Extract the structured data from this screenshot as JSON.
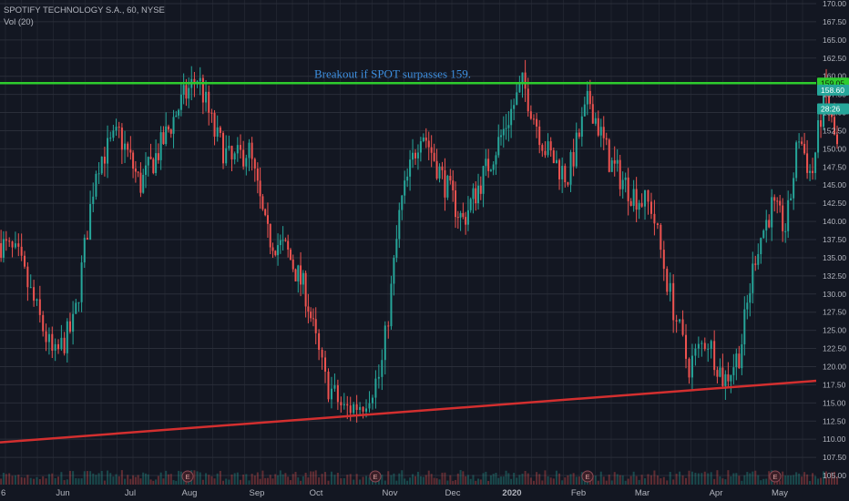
{
  "legend": {
    "symbol_line": "SPOTIFY TECHNOLOGY S.A., 60, NYSE",
    "volume_line": "Vol (20)"
  },
  "annotation": "Breakout if SPOT surpasses 159.",
  "badges": {
    "breakout_level": "159.05",
    "last_price": "158.60",
    "countdown": "28:26"
  },
  "earnings_marker": "E",
  "colors": {
    "background": "#131722",
    "grid": "#2a2e39",
    "up_candle": "#26a69a",
    "down_candle": "#ef5350",
    "resistance_line": "#2ecc2e",
    "support_line": "#d32f2f",
    "annotation": "#3d8fe0"
  },
  "chart_data": {
    "type": "candlestick",
    "interval": "60",
    "y_axis_side": "right",
    "ylim": [
      104,
      170
    ],
    "y_ticks": [
      "105.00",
      "107.50",
      "110.00",
      "112.50",
      "115.00",
      "117.50",
      "120.00",
      "122.50",
      "125.00",
      "127.50",
      "130.00",
      "132.50",
      "135.00",
      "137.50",
      "140.00",
      "142.50",
      "145.00",
      "147.50",
      "150.00",
      "152.50",
      "155.00",
      "157.50",
      "160.00",
      "162.50",
      "165.00",
      "167.50",
      "170.00"
    ],
    "x_ticks": [
      {
        "label": "6",
        "bold": false
      },
      {
        "label": "Jun",
        "bold": false
      },
      {
        "label": "Jul",
        "bold": false
      },
      {
        "label": "Aug",
        "bold": false
      },
      {
        "label": "Sep",
        "bold": false
      },
      {
        "label": "Oct",
        "bold": false
      },
      {
        "label": "Nov",
        "bold": false
      },
      {
        "label": "Dec",
        "bold": false
      },
      {
        "label": "2020",
        "bold": true
      },
      {
        "label": "Feb",
        "bold": false
      },
      {
        "label": "Mar",
        "bold": false
      },
      {
        "label": "Apr",
        "bold": false
      },
      {
        "label": "May",
        "bold": false
      }
    ],
    "price_path": [
      [
        "May 2019",
        137
      ],
      [
        "May 2019",
        135
      ],
      [
        "May 2019",
        128
      ],
      [
        "May 2019",
        121
      ],
      [
        "Jun 2019",
        126
      ],
      [
        "Jun 2019",
        148
      ],
      [
        "Jun 2019",
        152
      ],
      [
        "Jul 2019",
        145
      ],
      [
        "Jul 2019",
        150
      ],
      [
        "Jul 2019",
        156
      ],
      [
        "Aug 2019",
        160
      ],
      [
        "Aug 2019",
        152
      ],
      [
        "Aug 2019",
        148
      ],
      [
        "Aug 2019",
        150
      ],
      [
        "Sep 2019",
        138
      ],
      [
        "Sep 2019",
        136
      ],
      [
        "Sep 2019",
        130
      ],
      [
        "Oct 2019",
        118
      ],
      [
        "Oct 2019",
        114
      ],
      [
        "Oct 2019",
        115
      ],
      [
        "Oct 2019",
        119
      ],
      [
        "Nov 2019",
        142
      ],
      [
        "Nov 2019",
        153
      ],
      [
        "Nov 2019",
        146
      ],
      [
        "Dec 2019",
        140
      ],
      [
        "Dec 2019",
        146
      ],
      [
        "Dec 2019",
        152
      ],
      [
        "Jan 2020",
        159
      ],
      [
        "Jan 2020",
        150
      ],
      [
        "Jan 2020",
        146
      ],
      [
        "Feb 2020",
        157
      ],
      [
        "Feb 2020",
        148
      ],
      [
        "Feb 2020",
        144
      ],
      [
        "Mar 2020",
        142
      ],
      [
        "Mar 2020",
        130
      ],
      [
        "Mar 2020",
        120
      ],
      [
        "Mar 2020",
        124
      ],
      [
        "Apr 2020",
        118
      ],
      [
        "Apr 2020",
        122
      ],
      [
        "Apr 2020",
        136
      ],
      [
        "Apr 2020",
        142
      ],
      [
        "May 2020",
        139
      ],
      [
        "May 2020",
        152
      ],
      [
        "May 2020",
        146
      ],
      [
        "May 2020",
        158
      ],
      [
        "May 2020",
        150
      ]
    ],
    "resistance": {
      "price": 159.05
    },
    "support_trendline": {
      "start": [
        "May 2019",
        109.5
      ],
      "end": [
        "May 2020",
        118
      ]
    },
    "earnings_dates": [
      "Jul 2019",
      "Oct 2019",
      "Feb 2020",
      "Apr 2020"
    ]
  }
}
